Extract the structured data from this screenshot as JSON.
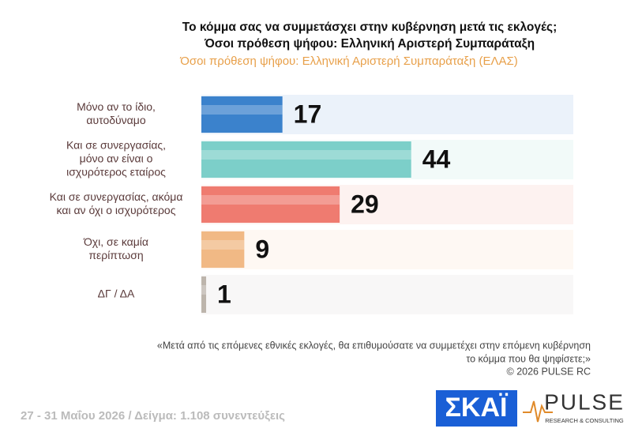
{
  "chart_data": {
    "type": "hbar",
    "title": [
      "Το κόμμα σας να συμμετάσχει στην κυβέρνηση μετά τις εκλογές;",
      "Όσοι πρόθεση ψήφου: Ελληνική Αριστερή Συμπαράταξη"
    ],
    "subtitle": "Όσοι πρόθεση ψήφου: Ελληνική Αριστερή Συμπαράταξη (ΕΛΑΣ)",
    "categories": [
      [
        "Μόνο αν το ίδιο,",
        "αυτοδύναμο"
      ],
      [
        "Και σε συνεργασίας,",
        "μόνο αν είναι ο",
        "ισχυρότερος εταίρος"
      ],
      [
        "Και σε συνεργασίας, ακόμα",
        "και αν όχι ο ισχυρότερος"
      ],
      [
        "Όχι, σε καμία",
        "περίπτωση"
      ],
      [
        "ΔΓ / ΔΑ"
      ]
    ],
    "values": [
      17,
      44,
      29,
      9,
      1
    ],
    "colors": [
      "#3b82cc",
      "#7ccfc9",
      "#ef7b70",
      "#f1b985",
      "#bdb5ac"
    ],
    "xlim": [
      0,
      78
    ],
    "note": [
      "«Μετά από τις επόμενες εθνικές εκλογές, θα επιθυμούσατε να συμμετέχει στην επόμενη κυβέρνηση",
      "το κόμμα που θα ψηφίσετε;»",
      "©  2026  PULSE RC"
    ],
    "footer": "27 - 31  Μαΐου 2026  /  Δείγμα:  1.108 συνεντεύξεις",
    "logos": {
      "skai": "ΣΚΑΪ",
      "pulse": "PULSE",
      "pulse_sub": "RESEARCH & CONSULTING"
    }
  }
}
